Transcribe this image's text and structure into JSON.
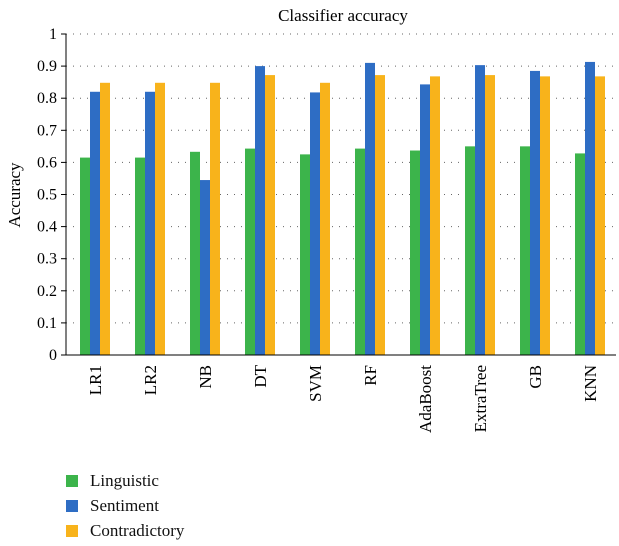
{
  "chart_data": {
    "type": "bar",
    "title": "Classifier accuracy",
    "xlabel": "",
    "ylabel": "Accuracy",
    "ylim": [
      0,
      1
    ],
    "yticks": [
      0,
      0.1,
      0.2,
      0.3,
      0.4,
      0.5,
      0.6,
      0.7,
      0.8,
      0.9,
      1
    ],
    "ytick_labels": [
      "0",
      "0.1",
      "0.2",
      "0.3",
      "0.4",
      "0.5",
      "0.6",
      "0.7",
      "0.8",
      "0.9",
      "1"
    ],
    "grid": "horizontal-dotted",
    "legend_position": "bottom-left",
    "categories": [
      "LR1",
      "LR2",
      "NB",
      "DT",
      "SVM",
      "RF",
      "AdaBoost",
      "ExtraTree",
      "GB",
      "KNN"
    ],
    "series": [
      {
        "name": "Linguistic",
        "color": "#3cb44b",
        "values": [
          0.615,
          0.615,
          0.633,
          0.643,
          0.625,
          0.643,
          0.637,
          0.65,
          0.65,
          0.628
        ]
      },
      {
        "name": "Sentiment",
        "color": "#2e6dc4",
        "values": [
          0.82,
          0.82,
          0.545,
          0.9,
          0.818,
          0.91,
          0.843,
          0.903,
          0.885,
          0.913
        ]
      },
      {
        "name": "Contradictory",
        "color": "#f8b31b",
        "values": [
          0.848,
          0.848,
          0.848,
          0.872,
          0.848,
          0.872,
          0.868,
          0.872,
          0.868,
          0.868
        ]
      }
    ]
  }
}
